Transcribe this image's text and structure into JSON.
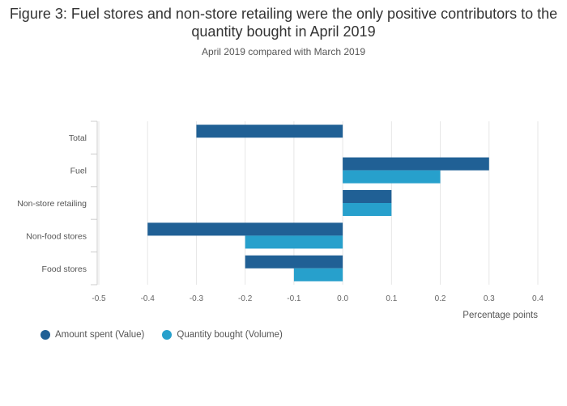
{
  "header": {
    "title": "Figure 3: Fuel stores and non-store retailing were the only positive contributors to the quantity bought in April 2019",
    "subtitle": "April 2019 compared with March 2019"
  },
  "chart_data": {
    "type": "bar",
    "orientation": "horizontal",
    "categories": [
      "Total",
      "Fuel",
      "Non-store retailing",
      "Non-food stores",
      "Food stores"
    ],
    "series": [
      {
        "name": "Amount spent (Value)",
        "values": [
          -0.3,
          0.3,
          0.1,
          -0.4,
          -0.2
        ],
        "color": "#206095"
      },
      {
        "name": "Quantity bought (Volume)",
        "values": [
          null,
          0.2,
          0.1,
          -0.2,
          -0.1
        ],
        "color": "#27a0cc"
      }
    ],
    "xlabel": "Percentage points",
    "xlim": [
      -0.5,
      0.4
    ],
    "xticks": [
      "-0.5",
      "-0.4",
      "-0.3",
      "-0.2",
      "-0.1",
      "0.0",
      "0.1",
      "0.2",
      "0.3",
      "0.4"
    ],
    "grid": true,
    "legend": "bottom-left"
  }
}
